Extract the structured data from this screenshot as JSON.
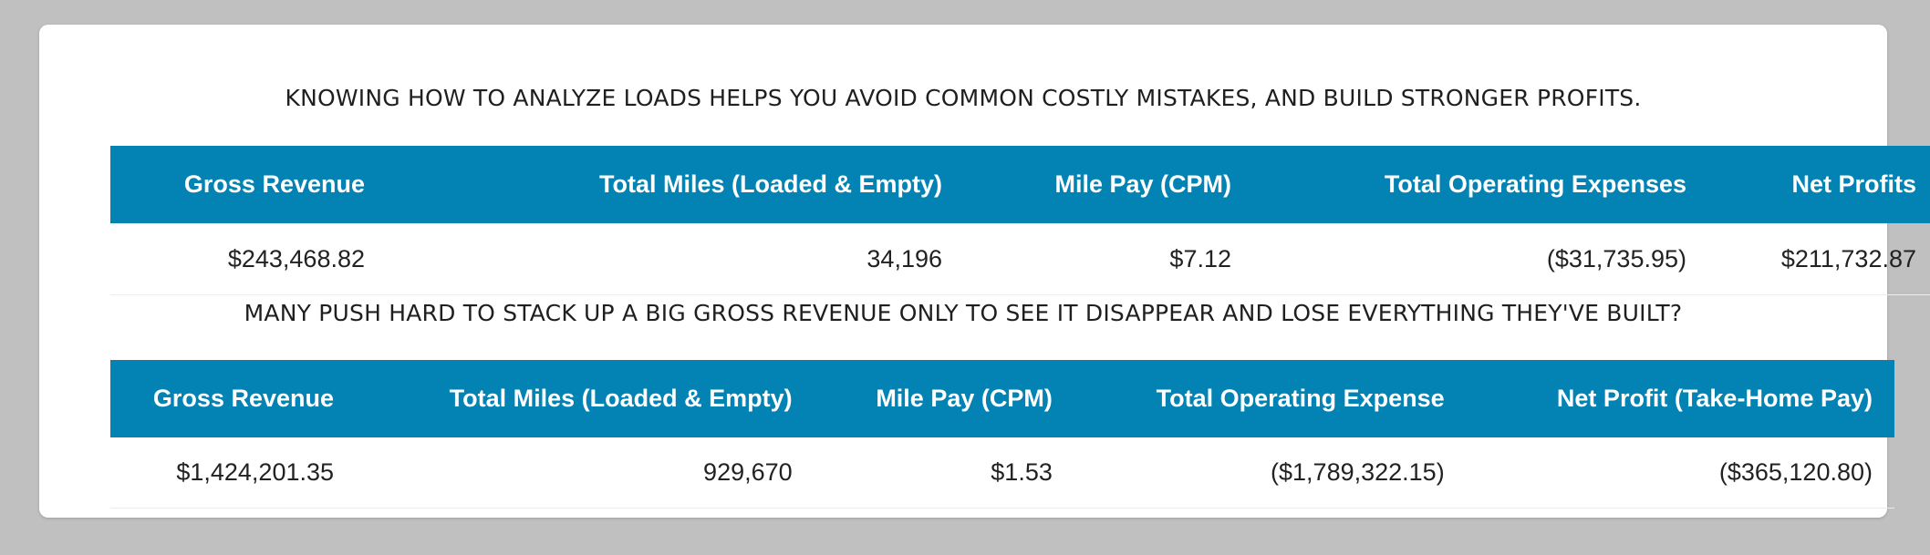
{
  "sections": [
    {
      "heading": "KNOWING HOW TO ANALYZE LOADS HELPS YOU AVOID COMMON COSTLY MISTAKES, AND BUILD STRONGER PROFITS.",
      "table": {
        "headers": [
          "Gross Revenue",
          "Total Miles (Loaded & Empty)",
          "Mile Pay (CPM)",
          "Total Operating Expenses",
          "Net Profits"
        ],
        "row": [
          "$243,468.82",
          "34,196",
          "$7.12",
          "($31,735.95)",
          "$211,732.87"
        ]
      }
    },
    {
      "heading": "MANY PUSH HARD TO STACK UP A BIG GROSS REVENUE ONLY TO SEE IT DISAPPEAR AND LOSE EVERYTHING THEY'VE BUILT?",
      "table": {
        "headers": [
          "Gross Revenue",
          "Total Miles (Loaded & Empty)",
          "Mile Pay (CPM)",
          "Total Operating Expense",
          "Net Profit (Take-Home Pay)"
        ],
        "row": [
          "$1,424,201.35",
          "929,670",
          "$1.53",
          "($1,789,322.15)",
          "($365,120.80)"
        ]
      }
    }
  ],
  "colors": {
    "header_bg": "#0283b4",
    "page_bg": "#c0c0c0",
    "card_bg": "#ffffff"
  }
}
